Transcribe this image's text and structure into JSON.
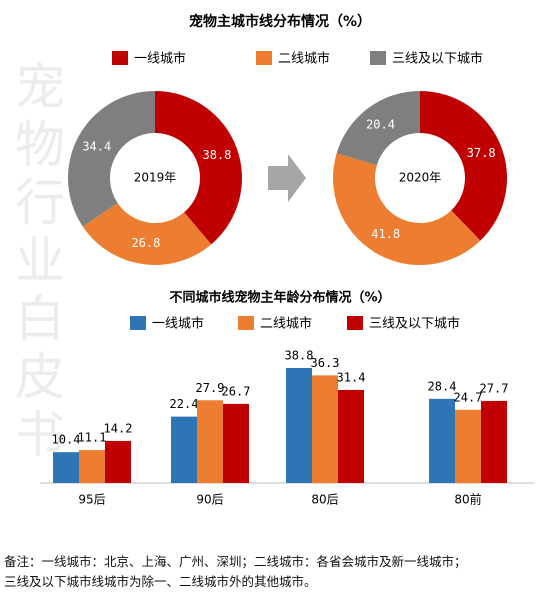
{
  "chart_data": [
    {
      "type": "donut",
      "title": "宠物主城市线分布情况（%）",
      "categories": [
        "一线城市",
        "二线城市",
        "三线及以下城市"
      ],
      "colors": [
        "#c00000",
        "#ed7d31",
        "#7f7f7f"
      ],
      "groups": [
        {
          "label": "2019年",
          "values": [
            38.8,
            26.8,
            34.4
          ]
        },
        {
          "label": "2020年",
          "values": [
            37.8,
            41.8,
            20.4
          ]
        }
      ]
    },
    {
      "type": "bar",
      "title": "不同城市线宠物主年龄分布情况（%）",
      "categories": [
        "95后",
        "90后",
        "80后",
        "80前"
      ],
      "series": [
        {
          "name": "一线城市",
          "color": "#2e75b6",
          "values": [
            10.4,
            22.4,
            38.8,
            28.4
          ]
        },
        {
          "name": "二线城市",
          "color": "#ed7d31",
          "values": [
            11.1,
            27.9,
            36.3,
            24.7
          ]
        },
        {
          "name": "三线及以下城市",
          "color": "#c00000",
          "values": [
            14.2,
            26.7,
            31.4,
            27.7
          ]
        }
      ]
    }
  ],
  "watermark": "宠物行业白皮书",
  "notes": [
    "备注：一线城市：北京、上海、广州、深圳；二线城市：各省会城市及新一线城市；",
    "三线及以下城市线城市为除一、二线城市外的其他城市。"
  ]
}
